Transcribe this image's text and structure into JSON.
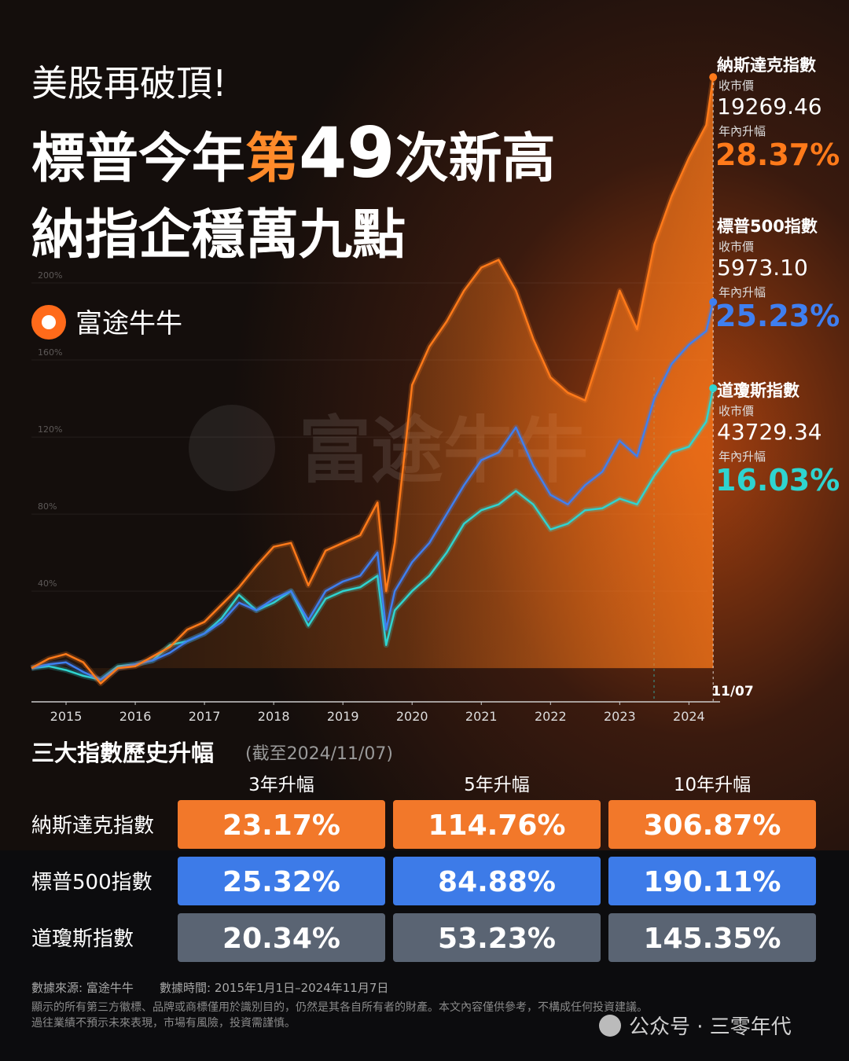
{
  "header": {
    "line1": "美股再破頂!",
    "line2": [
      "標普今年",
      "第",
      "49",
      "次新高"
    ],
    "line3": "納指企穩萬九點",
    "brand": "富途牛牛",
    "watermark": "富途牛牛"
  },
  "chart_data": {
    "type": "line",
    "x": [
      2015,
      2015.25,
      2015.5,
      2015.75,
      2016,
      2016.25,
      2016.5,
      2016.75,
      2017,
      2017.25,
      2017.5,
      2017.75,
      2018,
      2018.25,
      2018.5,
      2018.75,
      2019,
      2019.25,
      2019.5,
      2019.75,
      2020,
      2020.125,
      2020.25,
      2020.5,
      2020.75,
      2021,
      2021.25,
      2021.5,
      2021.75,
      2022,
      2022.25,
      2022.5,
      2022.75,
      2023,
      2023.25,
      2023.5,
      2023.75,
      2024,
      2024.25,
      2024.5,
      2024.75,
      2024.85
    ],
    "xlim": [
      2015,
      2024.95
    ],
    "xticks": [
      {
        "value": 2015.5,
        "label": "2015"
      },
      {
        "value": 2016.5,
        "label": "2016"
      },
      {
        "value": 2017.5,
        "label": "2017"
      },
      {
        "value": 2018.5,
        "label": "2018"
      },
      {
        "value": 2019.5,
        "label": "2019"
      },
      {
        "value": 2020.5,
        "label": "2020"
      },
      {
        "value": 2021.5,
        "label": "2021"
      },
      {
        "value": 2022.5,
        "label": "2022"
      },
      {
        "value": 2023.5,
        "label": "2023"
      },
      {
        "value": 2024.5,
        "label": "2024"
      }
    ],
    "ylim": [
      -17.5,
      310
    ],
    "yticks": [
      {
        "value": 40,
        "label": "40%"
      },
      {
        "value": 80,
        "label": "80%"
      },
      {
        "value": 120,
        "label": "120%"
      },
      {
        "value": 160,
        "label": "160%"
      },
      {
        "value": 200,
        "label": "200%"
      }
    ],
    "grid": true,
    "end_label": "11/07",
    "series": [
      {
        "name": "納斯達克指數",
        "color": "#ff7a1a",
        "values": [
          0,
          4.9,
          7.3,
          3,
          -8,
          0,
          1,
          6,
          11,
          20,
          24,
          33,
          42,
          53,
          63,
          65,
          43,
          61,
          65,
          69,
          86,
          40,
          65,
          147,
          167,
          180,
          196,
          208,
          212,
          196,
          171,
          151,
          143,
          139,
          167,
          196,
          176,
          220,
          245,
          265,
          282,
          306.87
        ]
      },
      {
        "name": "標普500指數",
        "color": "#3f7ff0",
        "values": [
          0,
          2,
          3,
          -2,
          -6,
          0,
          2,
          4,
          8,
          14,
          18,
          24,
          34,
          30,
          36,
          40,
          25,
          40,
          45,
          48,
          60,
          20,
          40,
          55,
          65,
          80,
          95,
          108,
          112,
          125,
          105,
          90,
          85,
          95,
          102,
          118,
          110,
          140,
          158,
          168,
          175,
          190.11
        ]
      },
      {
        "name": "道瓊斯指數",
        "color": "#2fd4d0",
        "values": [
          0,
          1,
          -1,
          -4,
          -6,
          1,
          2,
          4,
          12,
          14,
          18,
          26,
          38,
          30,
          34,
          40,
          22,
          36,
          40,
          42,
          48,
          12,
          30,
          40,
          48,
          60,
          75,
          82,
          85,
          92,
          85,
          72,
          75,
          82,
          83,
          88,
          85,
          100,
          112,
          115,
          128,
          145.35
        ]
      }
    ]
  },
  "index_panels": [
    {
      "close_label": "收市價",
      "close": "19269.46",
      "ytd_label": "年內升幅",
      "ytd": "28.37%"
    },
    {
      "close_label": "收市價",
      "close": "5973.10",
      "ytd_label": "年內升幅",
      "ytd": "25.23%"
    },
    {
      "close_label": "收市價",
      "close": "43729.34",
      "ytd_label": "年內升幅",
      "ytd": "16.03%"
    }
  ],
  "table": {
    "title": "三大指數歷史升幅",
    "note": "(截至2024/11/07)",
    "columns": [
      "3年升幅",
      "5年升幅",
      "10年升幅"
    ],
    "rows": [
      [
        "納斯達克指數",
        "23.17%",
        "114.76%",
        "306.87%"
      ],
      [
        "標普500指數",
        "25.32%",
        "84.88%",
        "190.11%"
      ],
      [
        "道瓊斯指數",
        "20.34%",
        "53.23%",
        "145.35%"
      ]
    ]
  },
  "footer": {
    "source": "數據來源: 富途牛牛",
    "period": "數據時間: 2015年1月1日–2024年11月7日",
    "disclaimer1": "顯示的所有第三方徽標、品牌或商標僅用於識別目的，仍然是其各自所有者的財產。本文內容僅供參考，不構成任何投資建議。",
    "disclaimer2": "過往業績不預示未來表現，市場有風險，投資需謹慎。",
    "account": "公众号 · 三零年代"
  }
}
